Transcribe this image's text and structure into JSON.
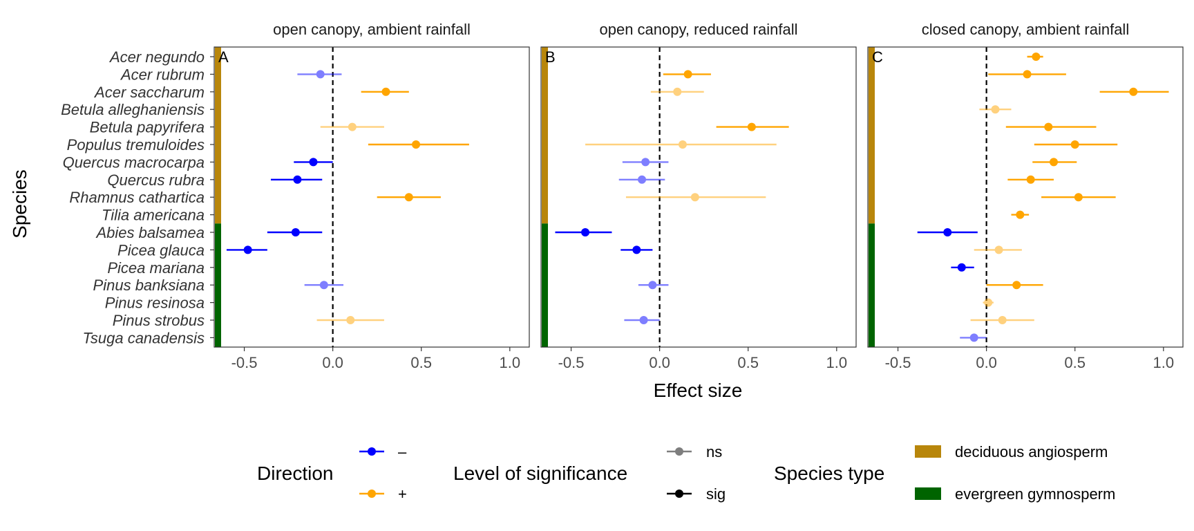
{
  "chart_data": {
    "type": "scatter",
    "subtype": "forest-plot",
    "xlabel": "Effect size",
    "ylabel": "Species",
    "xlim": [
      -0.67,
      1.11
    ],
    "x_ticks": [
      -0.5,
      0.0,
      0.5,
      1.0
    ],
    "x_tick_labels": [
      "-0.5",
      "0.0",
      "0.5",
      "1.0"
    ],
    "reference_line": 0,
    "species": [
      "Acer negundo",
      "Acer rubrum",
      "Acer saccharum",
      "Betula alleghaniensis",
      "Betula papyrifera",
      "Populus tremuloides",
      "Quercus macrocarpa",
      "Quercus rubra",
      "Rhamnus cathartica",
      "Tilia americana",
      "Abies balsamea",
      "Picea glauca",
      "Picea mariana",
      "Pinus banksiana",
      "Pinus resinosa",
      "Pinus strobus",
      "Tsuga canadensis"
    ],
    "species_type": [
      "deciduous angiosperm",
      "deciduous angiosperm",
      "deciduous angiosperm",
      "deciduous angiosperm",
      "deciduous angiosperm",
      "deciduous angiosperm",
      "deciduous angiosperm",
      "deciduous angiosperm",
      "deciduous angiosperm",
      "deciduous angiosperm",
      "evergreen gymnosperm",
      "evergreen gymnosperm",
      "evergreen gymnosperm",
      "evergreen gymnosperm",
      "evergreen gymnosperm",
      "evergreen gymnosperm",
      "evergreen gymnosperm"
    ],
    "panels": [
      {
        "tag": "A",
        "title": "open canopy, ambient rainfall",
        "points": [
          {
            "species": "Acer rubrum",
            "est": -0.07,
            "lo": -0.2,
            "hi": 0.05,
            "sig": "ns"
          },
          {
            "species": "Acer saccharum",
            "est": 0.3,
            "lo": 0.16,
            "hi": 0.43,
            "sig": "sig"
          },
          {
            "species": "Betula papyrifera",
            "est": 0.11,
            "lo": -0.07,
            "hi": 0.29,
            "sig": "ns"
          },
          {
            "species": "Populus tremuloides",
            "est": 0.47,
            "lo": 0.2,
            "hi": 0.77,
            "sig": "sig"
          },
          {
            "species": "Quercus macrocarpa",
            "est": -0.11,
            "lo": -0.22,
            "hi": 0.0,
            "sig": "sig"
          },
          {
            "species": "Quercus rubra",
            "est": -0.2,
            "lo": -0.35,
            "hi": -0.06,
            "sig": "sig"
          },
          {
            "species": "Rhamnus cathartica",
            "est": 0.43,
            "lo": 0.25,
            "hi": 0.61,
            "sig": "sig"
          },
          {
            "species": "Abies balsamea",
            "est": -0.21,
            "lo": -0.37,
            "hi": -0.06,
            "sig": "sig"
          },
          {
            "species": "Picea glauca",
            "est": -0.48,
            "lo": -0.6,
            "hi": -0.37,
            "sig": "sig"
          },
          {
            "species": "Pinus banksiana",
            "est": -0.05,
            "lo": -0.16,
            "hi": 0.06,
            "sig": "ns"
          },
          {
            "species": "Pinus strobus",
            "est": 0.1,
            "lo": -0.09,
            "hi": 0.29,
            "sig": "ns"
          }
        ]
      },
      {
        "tag": "B",
        "title": "open canopy, reduced rainfall",
        "points": [
          {
            "species": "Acer rubrum",
            "est": 0.16,
            "lo": 0.02,
            "hi": 0.29,
            "sig": "sig"
          },
          {
            "species": "Acer saccharum",
            "est": 0.1,
            "lo": -0.05,
            "hi": 0.25,
            "sig": "ns"
          },
          {
            "species": "Betula papyrifera",
            "est": 0.52,
            "lo": 0.32,
            "hi": 0.73,
            "sig": "sig"
          },
          {
            "species": "Populus tremuloides",
            "est": 0.13,
            "lo": -0.42,
            "hi": 0.66,
            "sig": "ns"
          },
          {
            "species": "Quercus macrocarpa",
            "est": -0.08,
            "lo": -0.21,
            "hi": 0.05,
            "sig": "ns"
          },
          {
            "species": "Quercus rubra",
            "est": -0.1,
            "lo": -0.23,
            "hi": 0.03,
            "sig": "ns"
          },
          {
            "species": "Rhamnus cathartica",
            "est": 0.2,
            "lo": -0.19,
            "hi": 0.6,
            "sig": "ns"
          },
          {
            "species": "Abies balsamea",
            "est": -0.42,
            "lo": -0.59,
            "hi": -0.27,
            "sig": "sig"
          },
          {
            "species": "Picea glauca",
            "est": -0.13,
            "lo": -0.22,
            "hi": -0.04,
            "sig": "sig"
          },
          {
            "species": "Pinus banksiana",
            "est": -0.04,
            "lo": -0.12,
            "hi": 0.05,
            "sig": "ns"
          },
          {
            "species": "Pinus strobus",
            "est": -0.09,
            "lo": -0.2,
            "hi": 0.0,
            "sig": "ns"
          }
        ]
      },
      {
        "tag": "C",
        "title": "closed canopy, ambient rainfall",
        "points": [
          {
            "species": "Acer negundo",
            "est": 0.28,
            "lo": 0.23,
            "hi": 0.32,
            "sig": "sig"
          },
          {
            "species": "Acer rubrum",
            "est": 0.23,
            "lo": 0.01,
            "hi": 0.45,
            "sig": "sig"
          },
          {
            "species": "Acer saccharum",
            "est": 0.83,
            "lo": 0.64,
            "hi": 1.03,
            "sig": "sig"
          },
          {
            "species": "Betula alleghaniensis",
            "est": 0.05,
            "lo": -0.04,
            "hi": 0.14,
            "sig": "ns"
          },
          {
            "species": "Betula papyrifera",
            "est": 0.35,
            "lo": 0.11,
            "hi": 0.62,
            "sig": "sig"
          },
          {
            "species": "Populus tremuloides",
            "est": 0.5,
            "lo": 0.27,
            "hi": 0.74,
            "sig": "sig"
          },
          {
            "species": "Quercus macrocarpa",
            "est": 0.38,
            "lo": 0.26,
            "hi": 0.51,
            "sig": "sig"
          },
          {
            "species": "Quercus rubra",
            "est": 0.25,
            "lo": 0.12,
            "hi": 0.38,
            "sig": "sig"
          },
          {
            "species": "Rhamnus cathartica",
            "est": 0.52,
            "lo": 0.31,
            "hi": 0.73,
            "sig": "sig"
          },
          {
            "species": "Tilia americana",
            "est": 0.19,
            "lo": 0.14,
            "hi": 0.24,
            "sig": "sig"
          },
          {
            "species": "Abies balsamea",
            "est": -0.22,
            "lo": -0.39,
            "hi": -0.05,
            "sig": "sig"
          },
          {
            "species": "Picea glauca",
            "est": 0.07,
            "lo": -0.07,
            "hi": 0.2,
            "sig": "ns"
          },
          {
            "species": "Picea mariana",
            "est": -0.14,
            "lo": -0.2,
            "hi": -0.07,
            "sig": "sig"
          },
          {
            "species": "Pinus banksiana",
            "est": 0.17,
            "lo": 0.0,
            "hi": 0.32,
            "sig": "sig"
          },
          {
            "species": "Pinus resinosa",
            "est": 0.01,
            "lo": -0.02,
            "hi": 0.04,
            "sig": "ns"
          },
          {
            "species": "Pinus strobus",
            "est": 0.09,
            "lo": -0.09,
            "hi": 0.27,
            "sig": "ns"
          },
          {
            "species": "Tsuga canadensis",
            "est": -0.07,
            "lo": -0.15,
            "hi": 0.0,
            "sig": "ns"
          }
        ]
      }
    ],
    "legend": {
      "placement": "bottom",
      "direction": {
        "title": "Direction",
        "items": [
          {
            "label": "–",
            "color": "#0000FF"
          },
          {
            "label": "+",
            "color": "#FFA500"
          }
        ]
      },
      "significance": {
        "title": "Level of significance",
        "items": [
          {
            "label": "ns",
            "alpha": 0.5
          },
          {
            "label": "sig",
            "alpha": 1.0
          }
        ]
      },
      "species_type": {
        "title": "Species type",
        "items": [
          {
            "label": "deciduous angiosperm",
            "color": "#B8860B"
          },
          {
            "label": "evergreen gymnosperm",
            "color": "#006400"
          }
        ]
      }
    },
    "colors": {
      "negative": "#0000FF",
      "positive": "#FFA500",
      "deciduous": "#B8860B",
      "evergreen": "#006400",
      "panel_border": "#333333",
      "reference_line": "#000000"
    },
    "grid": false
  }
}
